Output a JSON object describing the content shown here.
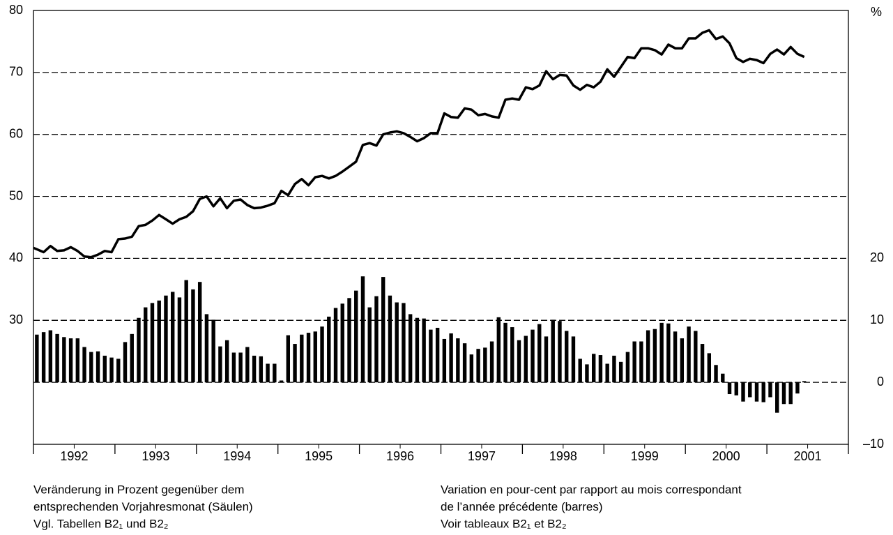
{
  "chart_data": {
    "type": "combo",
    "categories": [
      null,
      null,
      null,
      null,
      null,
      "1992",
      null,
      null,
      null,
      null,
      null,
      null,
      null,
      null,
      null,
      null,
      null,
      "1993",
      null,
      null,
      null,
      null,
      null,
      null,
      null,
      null,
      null,
      null,
      null,
      "1994",
      null,
      null,
      null,
      null,
      null,
      null,
      null,
      null,
      null,
      null,
      null,
      "1995",
      null,
      null,
      null,
      null,
      null,
      null,
      null,
      null,
      null,
      null,
      null,
      "1996",
      null,
      null,
      null,
      null,
      null,
      null,
      null,
      null,
      null,
      null,
      null,
      "1997",
      null,
      null,
      null,
      null,
      null,
      null,
      null,
      null,
      null,
      null,
      null,
      "1998",
      null,
      null,
      null,
      null,
      null,
      null,
      null,
      null,
      null,
      null,
      null,
      "1999",
      null,
      null,
      null,
      null,
      null,
      null,
      null,
      null,
      null,
      null,
      null,
      "2000",
      null,
      null,
      null,
      null,
      null,
      null,
      null,
      null,
      null,
      null,
      null,
      "2001",
      null,
      null,
      null,
      null,
      null,
      null
    ],
    "series": [
      {
        "type": "line",
        "color": "#000000",
        "values": [
          41.7,
          41.0,
          42.0,
          41.2,
          41.3,
          41.8,
          41.2,
          40.3,
          40.2,
          40.6,
          41.2,
          41.0,
          43.1,
          43.2,
          43.5,
          45.2,
          45.4,
          46.1,
          47.0,
          46.3,
          45.6,
          46.3,
          46.7,
          47.6,
          49.6,
          50.0,
          48.4,
          49.7,
          48.1,
          49.3,
          49.5,
          48.6,
          48.1,
          48.2,
          48.5,
          48.9,
          50.9,
          50.2,
          52.0,
          52.8,
          51.8,
          53.1,
          53.3,
          52.9,
          53.3,
          54.0,
          54.8,
          55.6,
          58.3,
          58.6,
          58.2,
          60.0,
          60.3,
          60.5,
          60.2,
          59.6,
          58.9,
          59.4,
          60.2,
          60.2,
          63.4,
          62.8,
          62.7,
          64.2,
          64.0,
          63.1,
          63.3,
          62.9,
          62.7,
          65.6,
          65.8,
          65.6,
          67.6,
          67.3,
          67.9,
          70.2,
          68.9,
          69.6,
          69.5,
          67.9,
          67.2,
          68.0,
          67.6,
          68.5,
          70.5,
          69.3,
          70.9,
          72.5,
          72.3,
          73.9,
          73.9,
          73.6,
          72.9,
          74.5,
          73.9,
          73.9,
          75.5,
          75.5,
          76.4,
          76.8,
          75.4,
          75.8,
          74.7,
          72.3,
          71.7,
          72.2,
          72.0,
          71.5,
          73.0,
          73.7,
          72.9,
          74.1,
          73.0,
          72.5,
          null,
          null,
          null,
          null,
          null,
          null
        ]
      },
      {
        "type": "bar",
        "axis": "y2",
        "color": "#000000",
        "values": [
          7.7,
          8.1,
          8.4,
          7.8,
          7.3,
          7.1,
          7.1,
          5.7,
          4.9,
          5.0,
          4.3,
          4.0,
          3.8,
          6.5,
          7.8,
          10.4,
          12.1,
          12.8,
          13.2,
          14.0,
          14.6,
          13.7,
          16.5,
          15.0,
          16.2,
          11.0,
          10.1,
          5.8,
          6.8,
          4.8,
          4.8,
          5.7,
          4.3,
          4.2,
          3.0,
          3.0,
          0.3,
          7.6,
          6.2,
          7.7,
          8.0,
          8.2,
          9.0,
          10.6,
          12.0,
          12.7,
          13.6,
          14.8,
          17.1,
          12.1,
          13.9,
          17.0,
          14.0,
          12.9,
          12.8,
          11.0,
          10.4,
          10.3,
          8.5,
          8.8,
          7.0,
          7.9,
          7.1,
          6.3,
          4.5,
          5.4,
          5.6,
          6.6,
          10.5,
          9.6,
          8.9,
          6.8,
          7.5,
          8.5,
          9.4,
          7.4,
          10.1,
          9.9,
          8.3,
          7.4,
          3.8,
          2.9,
          4.6,
          4.4,
          3.0,
          4.3,
          3.3,
          4.9,
          6.6,
          6.6,
          8.4,
          8.6,
          9.6,
          9.5,
          8.2,
          7.1,
          9.0,
          8.3,
          6.2,
          4.7,
          2.8,
          1.4,
          -1.9,
          -2.1,
          -3.1,
          -2.4,
          -3.1,
          -3.2,
          -2.4,
          -4.9,
          -3.5,
          -3.5,
          -1.8,
          0.2,
          null,
          null,
          null,
          null,
          null,
          null
        ]
      }
    ],
    "ylim": [
      10,
      80
    ],
    "yticks": [
      30,
      40,
      50,
      60,
      70,
      80
    ],
    "y2lim": [
      -10,
      60
    ],
    "y2ticks": [
      {
        "value": -10,
        "label": "–10"
      },
      0,
      10,
      20
    ],
    "y2label": "%",
    "grid": true,
    "notes_left": [
      "Veränderung in Prozent gegenüber dem",
      "entsprechenden Vorjahresmonat (Säulen)",
      "Vgl. Tabellen B2₁ und B2₂"
    ],
    "notes_right": [
      "Variation en pour-cent par rapport au mois correspondant",
      "de l’année précédente (barres)",
      "Voir tableaux B2₁ et B2₂"
    ]
  }
}
